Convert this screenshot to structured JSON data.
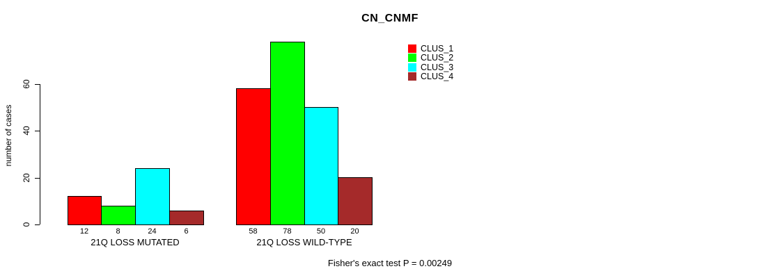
{
  "chart_data": {
    "type": "bar",
    "title": "CN_CNMF",
    "ylabel": "number of cases",
    "xlabel": "",
    "footer": "Fisher's exact test P = 0.00249",
    "yticks": [
      0,
      20,
      40,
      60
    ],
    "ylim": [
      0,
      80
    ],
    "grid": false,
    "legend_position": "top-right-outside",
    "categories": [
      "21Q LOSS MUTATED",
      "21Q LOSS WILD-TYPE"
    ],
    "series": [
      {
        "name": "CLUS_1",
        "color": "#FF0000",
        "values": [
          12,
          58
        ]
      },
      {
        "name": "CLUS_2",
        "color": "#00FF00",
        "values": [
          8,
          78
        ]
      },
      {
        "name": "CLUS_3",
        "color": "#00FFFF",
        "values": [
          24,
          50
        ]
      },
      {
        "name": "CLUS_4",
        "color": "#A52A2A",
        "values": [
          6,
          20
        ]
      }
    ],
    "bar_value_labels": [
      [
        "12",
        "8",
        "24",
        "6"
      ],
      [
        "58",
        "78",
        "50",
        "20"
      ]
    ],
    "bar_border_color": "#000000",
    "text_color": "#000000",
    "background_color": "#FFFFFF"
  }
}
